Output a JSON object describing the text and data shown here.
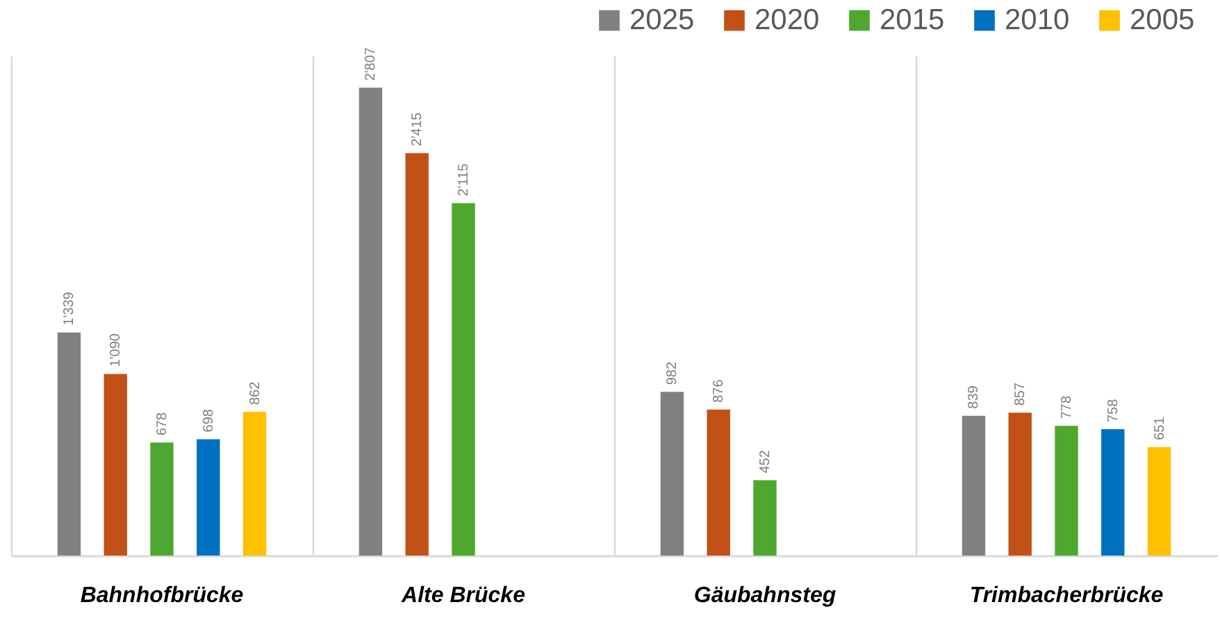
{
  "chart_data": {
    "type": "bar",
    "categories": [
      "Bahnhofbrücke",
      "Alte Brücke",
      "Gäubahnsteg",
      "Trimbacherbrücke"
    ],
    "series": [
      {
        "name": "2025",
        "color": "#808080",
        "values": [
          1339,
          2807,
          982,
          839
        ],
        "value_labels": [
          "1'339",
          "2'807",
          "982",
          "839"
        ]
      },
      {
        "name": "2020",
        "color": "#c25117",
        "values": [
          1090,
          2415,
          876,
          857
        ],
        "value_labels": [
          "1'090",
          "2'415",
          "876",
          "857"
        ]
      },
      {
        "name": "2015",
        "color": "#4ea72e",
        "values": [
          678,
          2115,
          452,
          778
        ],
        "value_labels": [
          "678",
          "2'115",
          "452",
          "778"
        ]
      },
      {
        "name": "2010",
        "color": "#0070c0",
        "values": [
          698,
          null,
          null,
          758
        ],
        "value_labels": [
          "698",
          null,
          null,
          "758"
        ]
      },
      {
        "name": "2005",
        "color": "#ffc000",
        "values": [
          862,
          null,
          null,
          651
        ],
        "value_labels": [
          "862",
          null,
          null,
          "651"
        ]
      }
    ],
    "legend": "top right",
    "grid": "x"
  }
}
